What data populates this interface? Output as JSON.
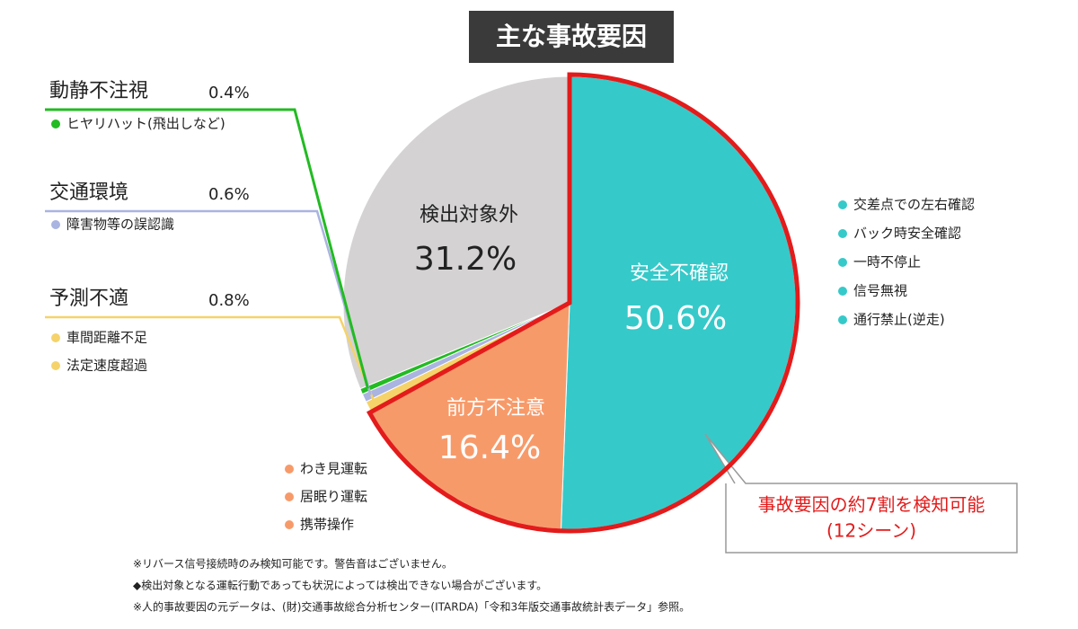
{
  "chart_data": {
    "type": "pie",
    "title": "主な事故要因",
    "categories": [
      "安全不確認",
      "前方不注意",
      "予測不適",
      "交通環境",
      "動静不注視",
      "検出対象外"
    ],
    "values": [
      50.6,
      16.4,
      0.8,
      0.6,
      0.4,
      31.2
    ],
    "value_labels": [
      "50.6%",
      "16.4%",
      "0.8%",
      "0.6%",
      "0.4%",
      "31.2%"
    ],
    "colors": [
      "#36c9c9",
      "#f79a6a",
      "#f5d36a",
      "#aab4e0",
      "#22bb22",
      "#d4d2d2"
    ],
    "sub_items": [
      [
        "交差点での左右確認",
        "バック時安全確認",
        "一時不停止",
        "信号無視",
        "通行禁止(逆走)"
      ],
      [
        "わき見運転",
        "居眠り運転",
        "携帯操作"
      ],
      [
        "車間距離不足",
        "法定速度超過"
      ],
      [
        "障害物等の誤認識"
      ],
      [
        "ヒヤリハット(飛出しなど)"
      ],
      []
    ],
    "callout": [
      "事故要因の約7割を検知可能",
      "(12シーン)"
    ],
    "notes": [
      "※リバース信号接続時のみ検知可能です。警告音はございません。",
      "◆検出対象となる運転行動であっても状況によっては検出できない場合がございます。",
      "※人的事故要因の元データは、(財)交通事故総合分析センター(ITARDA)「令和3年版交通事故統計表データ」参照。"
    ]
  }
}
